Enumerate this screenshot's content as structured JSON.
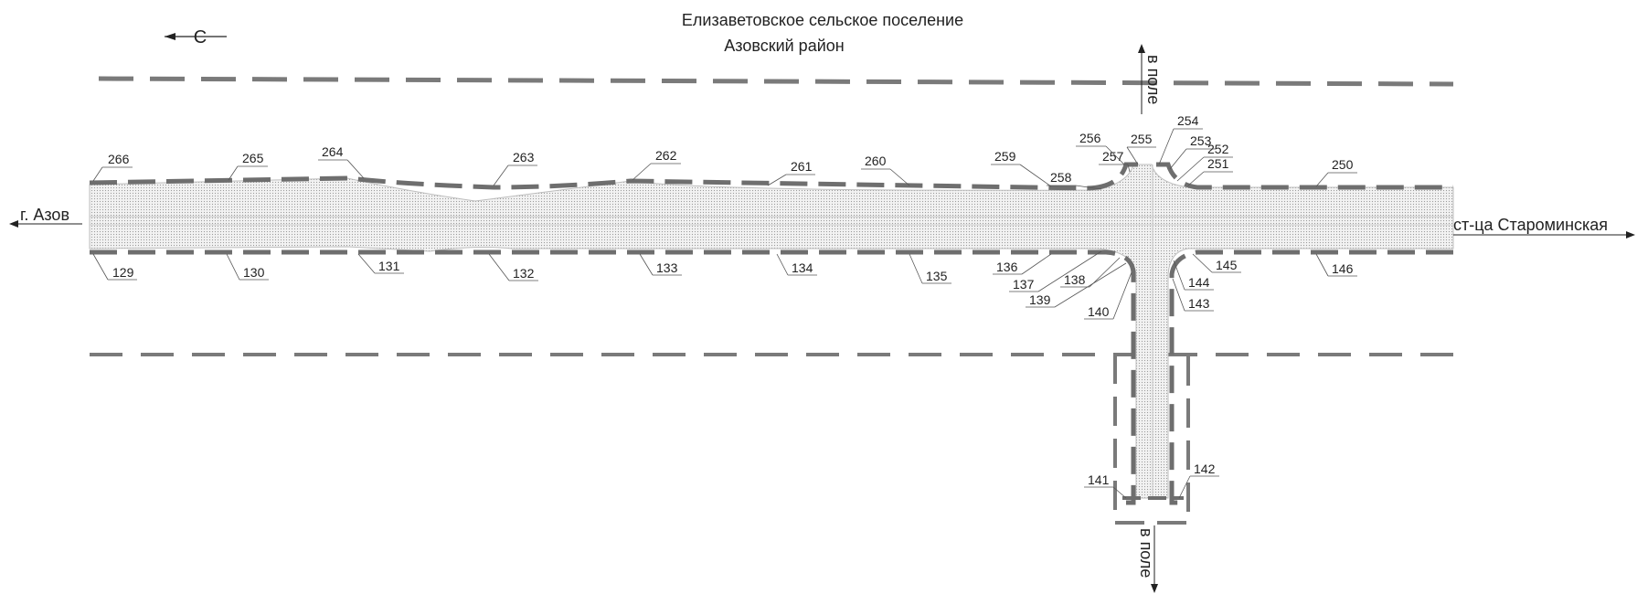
{
  "title": {
    "line1": "Елизаветовское сельское поселение",
    "line2": "Азовский район"
  },
  "north_arrow": {
    "letter": "С"
  },
  "directions": {
    "left": "г. Азов",
    "right": "ст-ца Староминская",
    "top": "в поле",
    "bottom": "в поле"
  },
  "points": {
    "top_row": [
      "266",
      "265",
      "264",
      "263",
      "262",
      "261",
      "260",
      "259",
      "258",
      "257",
      "256",
      "255",
      "254",
      "253",
      "252",
      "251",
      "250"
    ],
    "bottom_row": [
      "129",
      "130",
      "131",
      "132",
      "133",
      "134",
      "135",
      "136",
      "137",
      "138",
      "139",
      "140",
      "144",
      "145",
      "146",
      "143"
    ],
    "branch": [
      "141",
      "142"
    ]
  },
  "colors": {
    "boundary": "#6e6e6e",
    "road_hatch": "#b8b8b8",
    "text": "#222222"
  }
}
